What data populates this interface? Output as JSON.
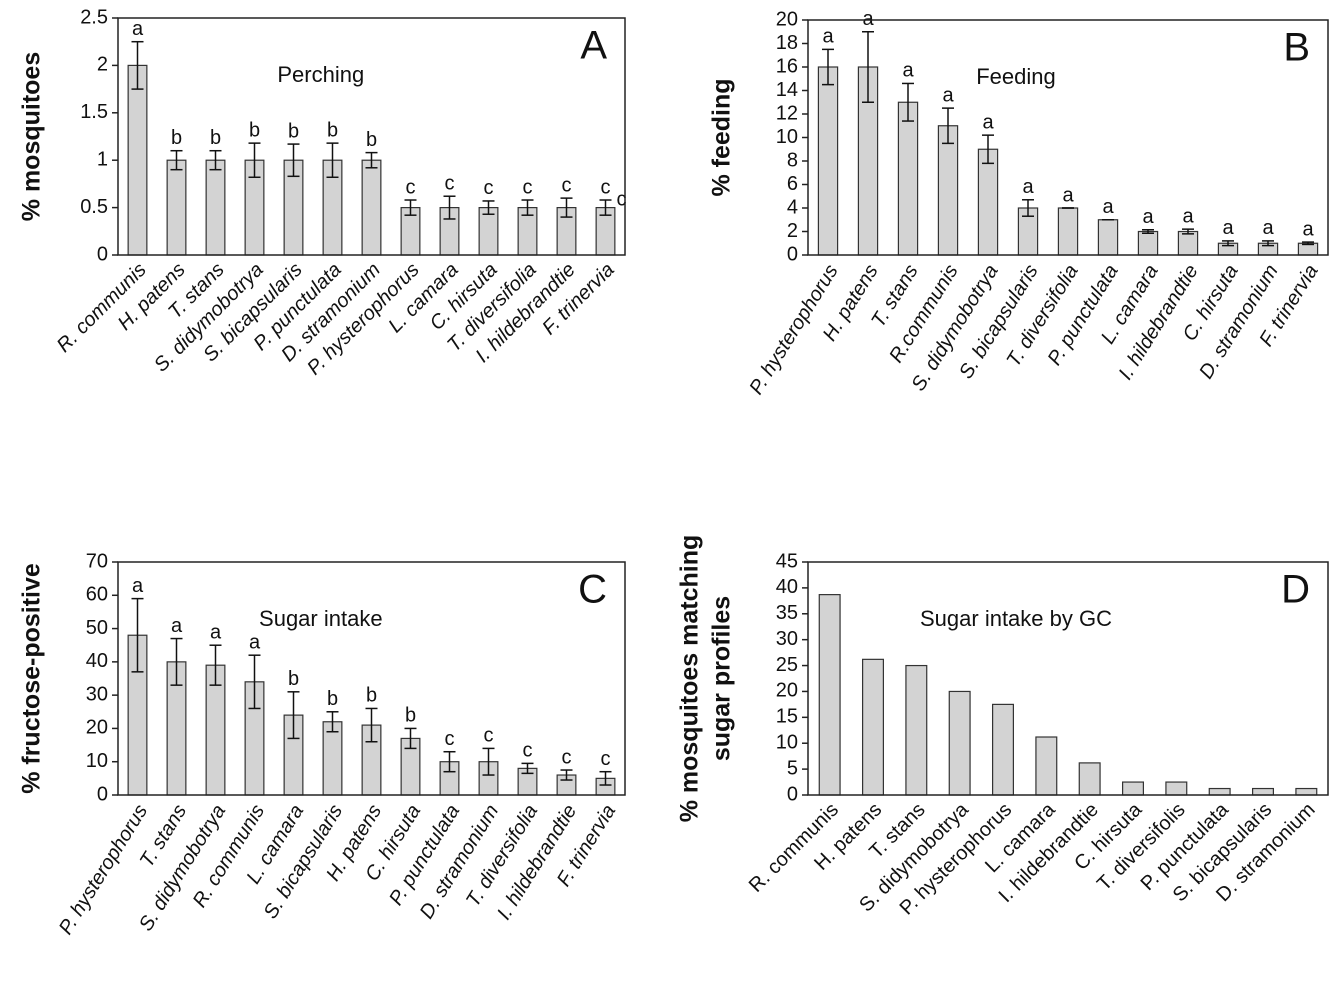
{
  "chart_data": [
    {
      "type": "bar",
      "title": "Perching",
      "panel_label": "A",
      "ylabel": [
        "% mosquitoes"
      ],
      "category_style": "italic",
      "color": "#d3d3d3",
      "categories": [
        "R. communis",
        "H. patens",
        "T. stans",
        "S. didymobotrya",
        "S. bicapsularis",
        "P. punctulata",
        "D. stramonium",
        "P. hysterophorus",
        "L. camara",
        "C. hirsuta",
        "T. diversifolia",
        "I. hildebrandtie",
        "F. trinervia"
      ],
      "values": [
        2,
        1,
        1,
        1,
        1,
        1,
        1,
        0.5,
        0.5,
        0.5,
        0.5,
        0.5,
        0.5
      ],
      "errors": [
        0.25,
        0.1,
        0.1,
        0.18,
        0.17,
        0.18,
        0.08,
        0.08,
        0.12,
        0.07,
        0.08,
        0.1,
        0.08
      ],
      "letters": [
        "a",
        "b",
        "b",
        "b",
        "b",
        "b",
        "b",
        "c",
        "c",
        "c",
        "c",
        "c",
        "c"
      ],
      "annotations": [
        "c"
      ],
      "ylim": [
        0,
        2.5
      ],
      "yticks": [
        0,
        0.5,
        1,
        1.5,
        2,
        2.5
      ]
    },
    {
      "type": "bar",
      "title": "Feeding",
      "panel_label": "B",
      "ylabel": [
        "% feeding"
      ],
      "category_style": "italic",
      "color": "#d3d3d3",
      "categories": [
        "P. hysterophorus",
        "H. patens",
        "T. stans",
        "R.communis",
        "S. didymobotrya",
        "S. bicapsularis",
        "T. diversifolia",
        "P. punctulata",
        "L. camara",
        "I. hildebrandtie",
        "C. hirsuta",
        "D. stramonium",
        "F. trinervia"
      ],
      "values": [
        16,
        16,
        13,
        11,
        9,
        4,
        4,
        3,
        2,
        2,
        1,
        1,
        1
      ],
      "errors": [
        1.5,
        3,
        1.6,
        1.5,
        1.2,
        0.7,
        0,
        0,
        0.15,
        0.2,
        0.2,
        0.2,
        0.1
      ],
      "letters": [
        "a",
        "a",
        "a",
        "a",
        "a",
        "a",
        "a",
        "a",
        "a",
        "a",
        "a",
        "a",
        "a"
      ],
      "ylim": [
        0,
        20
      ],
      "yticks": [
        0,
        2,
        4,
        6,
        8,
        10,
        12,
        14,
        16,
        18,
        20
      ]
    },
    {
      "type": "bar",
      "title": "Sugar intake",
      "panel_label": "C",
      "ylabel": [
        "% fructose-positive"
      ],
      "category_style": "italic",
      "color": "#d3d3d3",
      "categories": [
        "P. hysterophorus",
        "T. stans",
        "S. didymobotrya",
        "R. communis",
        "L. camara",
        "S. bicapsularis",
        "H. patens",
        "C. hirsuta",
        "P. punctulata",
        "D. stramonium",
        "T. diversifolia",
        "I. hildebrandtie",
        "F. trinervia"
      ],
      "values": [
        48,
        40,
        39,
        34,
        24,
        22,
        21,
        17,
        10,
        10,
        8,
        6,
        5
      ],
      "errors": [
        11,
        7,
        6,
        8,
        7,
        3,
        5,
        3,
        3,
        4,
        1.5,
        1.5,
        2
      ],
      "letters": [
        "a",
        "a",
        "a",
        "a",
        "b",
        "b",
        "b",
        "b",
        "c",
        "c",
        "c",
        "c",
        "c"
      ],
      "ylim": [
        0,
        70
      ],
      "yticks": [
        0,
        10,
        20,
        30,
        40,
        50,
        60,
        70
      ]
    },
    {
      "type": "bar",
      "title": "Sugar intake by GC",
      "panel_label": "D",
      "ylabel": [
        "% mosquitoes matching",
        "sugar profiles"
      ],
      "category_style": "normal",
      "color": "#d3d3d3",
      "categories": [
        "R. communis",
        "H. patens",
        "T. stans",
        "S. didymobotrya",
        "P. hysterophorus",
        "L. camara",
        "I. hildebrandtie",
        "C. hirsuta",
        "T. diversifolis",
        "P. punctulata",
        "S. bicapsularis",
        "D. stramonium"
      ],
      "values": [
        38.7,
        26.2,
        25,
        20,
        17.5,
        11.2,
        6.2,
        2.5,
        2.5,
        1.25,
        1.25,
        1.25
      ],
      "ylim": [
        0,
        45
      ],
      "yticks": [
        0,
        5,
        10,
        15,
        20,
        25,
        30,
        35,
        40,
        45
      ]
    }
  ]
}
